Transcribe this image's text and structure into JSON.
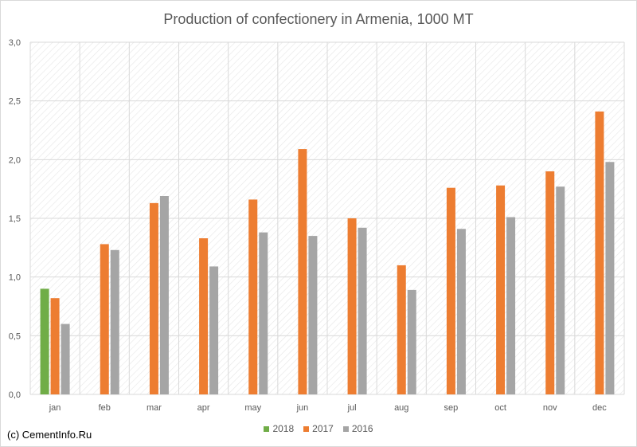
{
  "chart_data": {
    "type": "bar",
    "title": "Production of confectionery in Armenia, 1000 MT",
    "categories": [
      "jan",
      "feb",
      "mar",
      "apr",
      "may",
      "jun",
      "jul",
      "aug",
      "sep",
      "oct",
      "nov",
      "dec"
    ],
    "series": [
      {
        "name": "2018",
        "color": "#70ad47",
        "values": [
          0.9,
          null,
          null,
          null,
          null,
          null,
          null,
          null,
          null,
          null,
          null,
          null
        ]
      },
      {
        "name": "2017",
        "color": "#ed7d31",
        "values": [
          0.82,
          1.28,
          1.63,
          1.33,
          1.66,
          2.09,
          1.5,
          1.1,
          1.76,
          1.78,
          1.9,
          2.41
        ]
      },
      {
        "name": "2016",
        "color": "#a5a5a5",
        "values": [
          0.6,
          1.23,
          1.69,
          1.09,
          1.38,
          1.35,
          1.42,
          0.89,
          1.41,
          1.51,
          1.77,
          1.98
        ]
      }
    ],
    "y_ticks": [
      "0,0",
      "0,5",
      "1,0",
      "1,5",
      "2,0",
      "2,5",
      "3,0"
    ],
    "ylim": [
      0,
      3.0
    ],
    "grid": true,
    "legend_position": "bottom"
  },
  "footer": {
    "copyright": "(c) CementInfo.Ru"
  }
}
